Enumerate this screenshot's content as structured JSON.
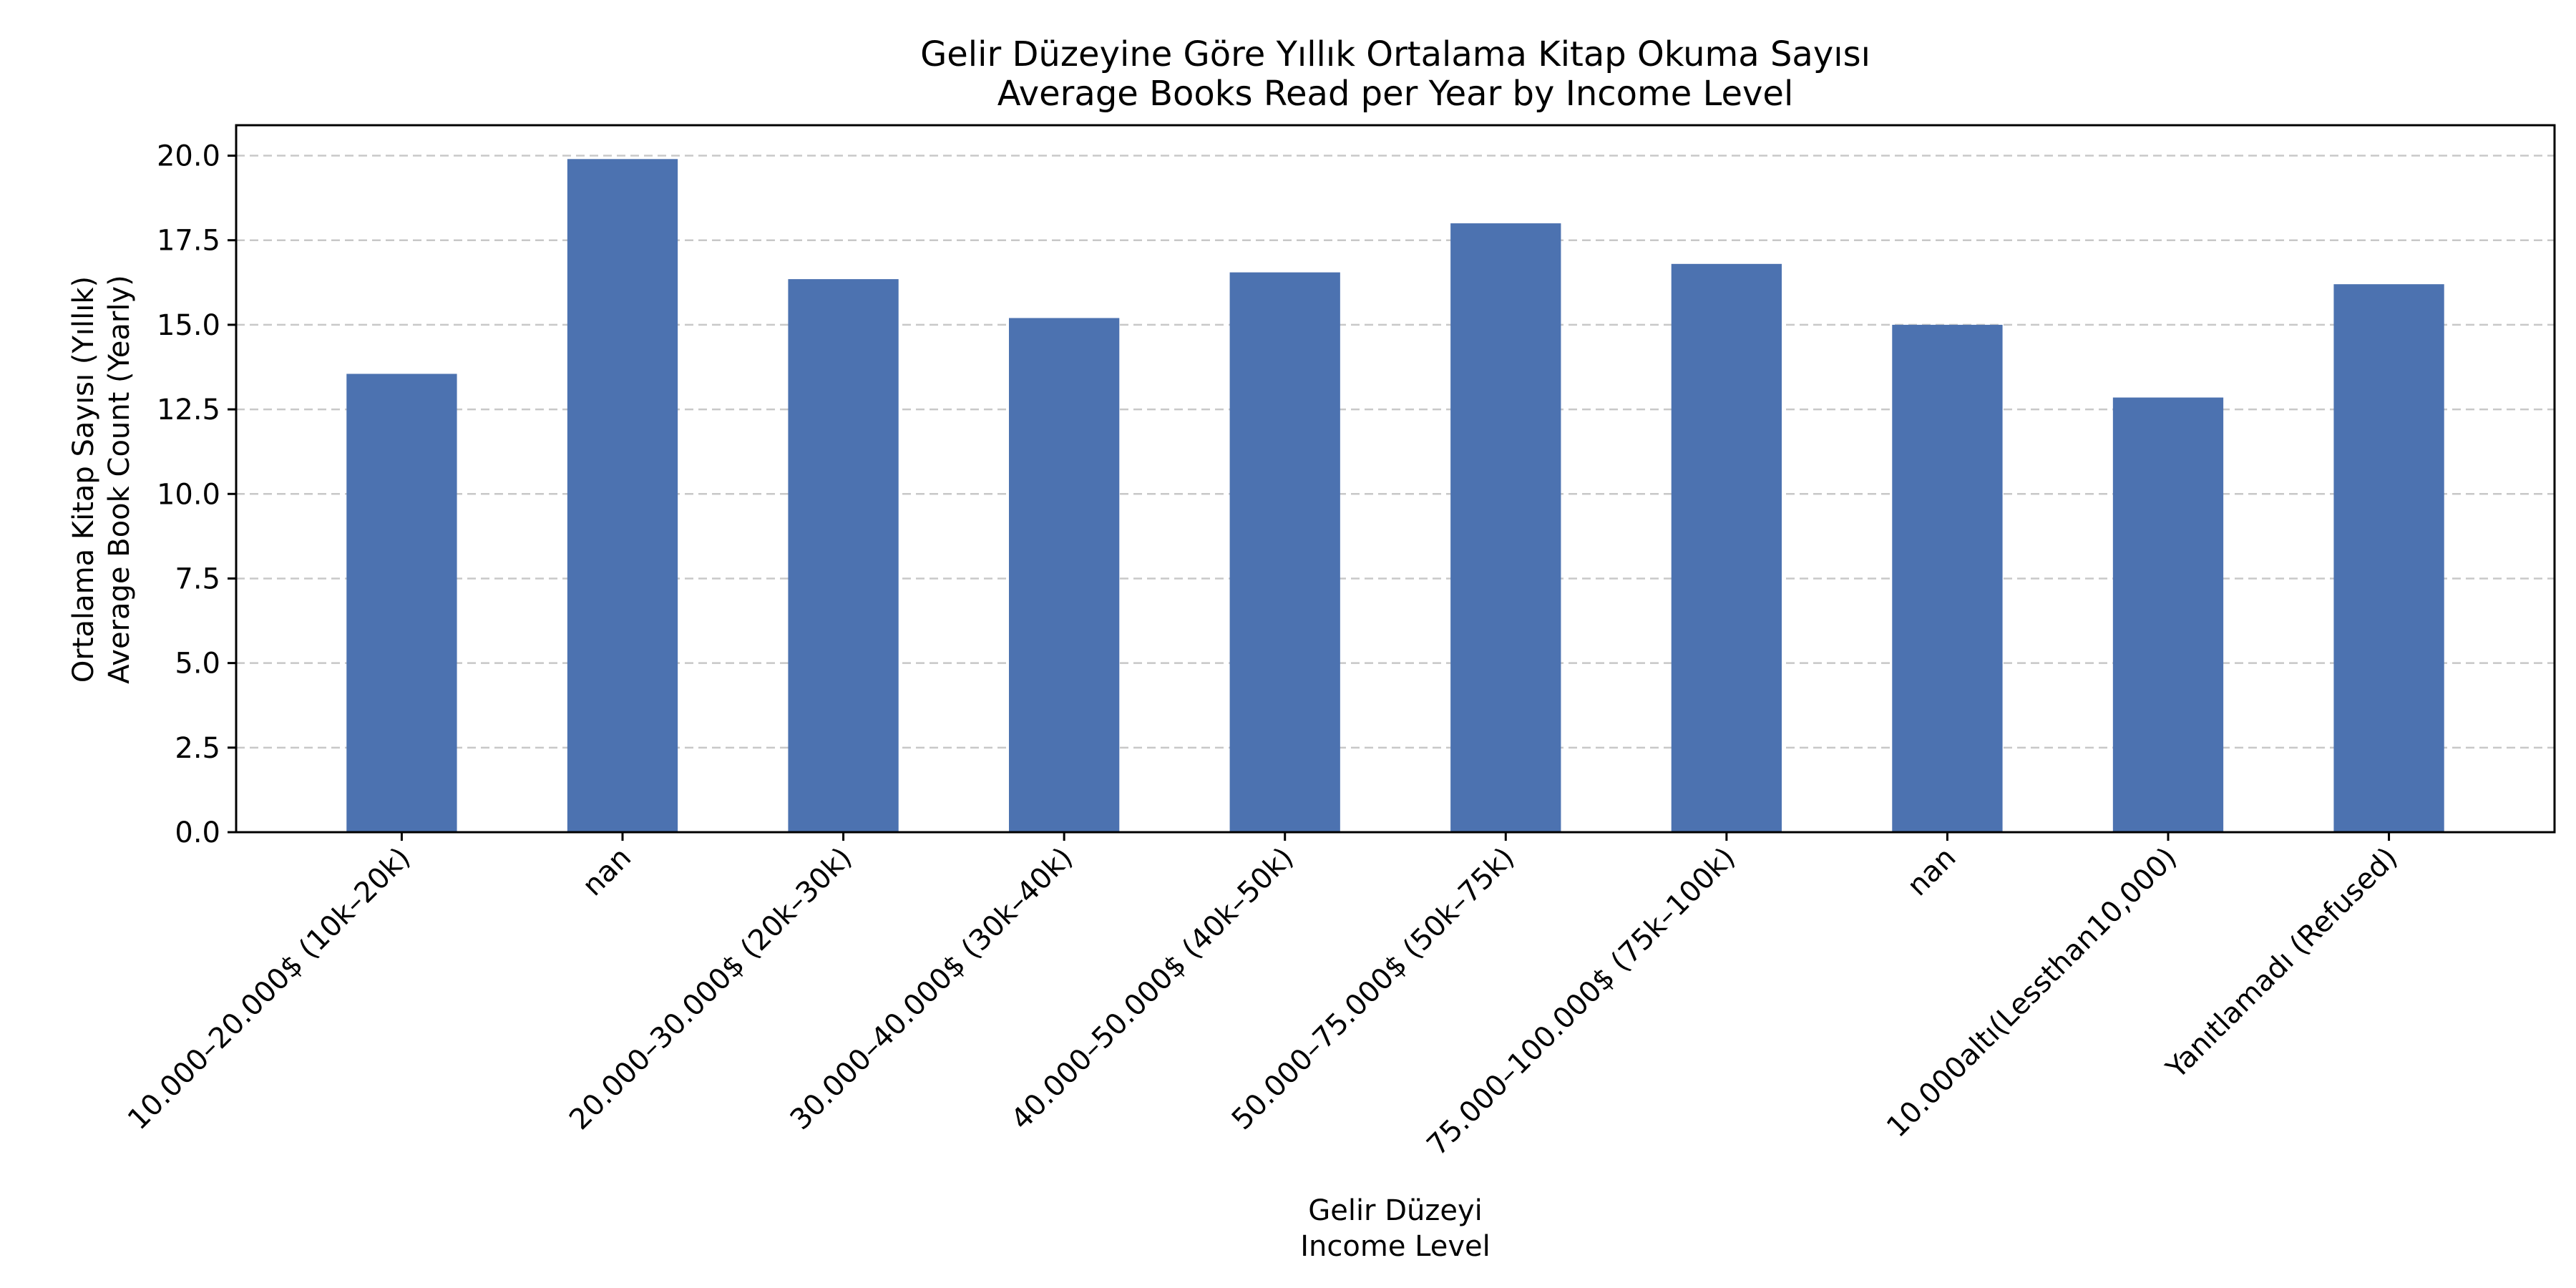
{
  "chart_data": {
    "type": "bar",
    "title": "Gelir Düzeyine Göre Yıllık Ortalama Kitap Okuma Sayısı",
    "subtitle": "Average Books Read per Year by Income Level",
    "xlabel": "Gelir Düzeyi",
    "xlabel_secondary": "Income Level",
    "ylabel": "Ortalama Kitap Sayısı (Yıllık)",
    "ylabel_secondary": "Average Book Count (Yearly)",
    "categories": [
      "10.000–20.000$ (10k–20k)",
      "nan",
      "20.000–30.000$ (20k–30k)",
      "30.000–40.000$ (30k–40k)",
      "40.000–50.000$ (40k–50k)",
      "50.000–75.000$ (50k–75k)",
      "75.000–100.000$ (75k–100k)",
      "nan",
      "10.000altı(Lessthan10,000)",
      "Yanıtlamadı (Refused)"
    ],
    "values": [
      13.55,
      19.9,
      16.35,
      15.2,
      16.55,
      18.0,
      16.8,
      15.0,
      12.85,
      16.2
    ],
    "ylim": [
      0,
      20.9
    ],
    "yticks": [
      0,
      2.5,
      5,
      7.5,
      10,
      12.5,
      15,
      17.5,
      20
    ],
    "ytick_labels": [
      "0.0",
      "2.5",
      "5.0",
      "7.5",
      "10.0",
      "12.5",
      "15.0",
      "17.5",
      "20.0"
    ],
    "grid": "y-dashed",
    "legend": "none",
    "colors": {
      "bar": "#4c72b0",
      "grid": "#c8c8c8",
      "axis": "#000000"
    }
  }
}
